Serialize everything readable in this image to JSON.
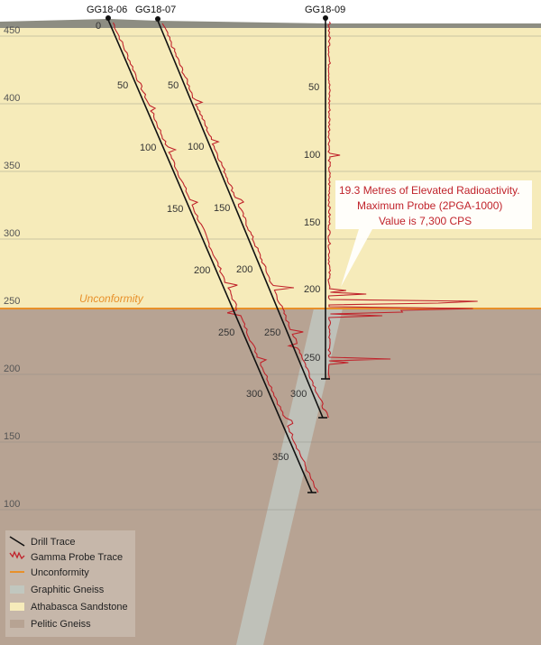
{
  "colors": {
    "sandstone": "#f6ebba",
    "pelitic": "#b7a393",
    "graphitic": "#c1c7bf",
    "unconformity": "#e8902a",
    "gamma": "#c0232b",
    "drill": "#111111",
    "surface": "#8d8d82"
  },
  "elevation_labels": [
    "450",
    "400",
    "350",
    "300",
    "250",
    "200",
    "150",
    "100"
  ],
  "unconformity_label": "Unconformity",
  "holes": [
    {
      "name": "GG18-06",
      "depth_labels": [
        "0",
        "50",
        "100",
        "150",
        "200",
        "250",
        "300",
        "350"
      ]
    },
    {
      "name": "GG18-07",
      "depth_labels": [
        "50",
        "100",
        "150",
        "200",
        "250",
        "300"
      ]
    },
    {
      "name": "GG18-09",
      "depth_labels": [
        "50",
        "100",
        "150",
        "200",
        "250"
      ]
    }
  ],
  "callout": {
    "line1": "19.3 Metres of Elevated Radioactivity.",
    "line2": "Maximum Probe (2PGA-1000)",
    "line3": "Value is 7,300 CPS"
  },
  "legend": [
    {
      "label": "Drill Trace",
      "icon": "drill-trace-line"
    },
    {
      "label": "Gamma Probe Trace",
      "icon": "gamma-trace-squiggle"
    },
    {
      "label": "Unconformity",
      "icon": "unconformity-line"
    },
    {
      "label": "Graphitic Gneiss",
      "icon": "graphitic-swatch"
    },
    {
      "label": "Athabasca Sandstone",
      "icon": "sandstone-swatch"
    },
    {
      "label": "Pelitic Gneiss",
      "icon": "pelitic-swatch"
    }
  ]
}
